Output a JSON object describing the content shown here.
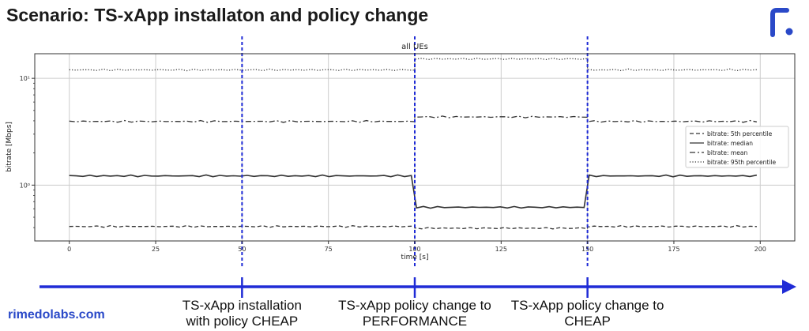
{
  "slide": {
    "title": "Scenario: TS-xApp installaton and policy change",
    "brand": "rimedolabs.com",
    "logo_icon": "rimedo-logo-icon",
    "accent_color": "#1f2bd6",
    "brand_color": "#2a49c8"
  },
  "annotations": [
    {
      "x": 50,
      "line1": "TS-xApp installation",
      "line2": "with policy CHEAP"
    },
    {
      "x": 100,
      "line1": "TS-xApp policy change to",
      "line2": "PERFORMANCE"
    },
    {
      "x": 150,
      "line1": "TS-xApp policy change to",
      "line2": "CHEAP"
    }
  ],
  "chart_data": {
    "type": "line",
    "title": "all UEs",
    "xlabel": "time [s]",
    "ylabel": "bitrate [Mbps]",
    "xlim": [
      -10,
      210
    ],
    "ylim": [
      0.3,
      17
    ],
    "yscale": "log",
    "xticks": [
      0,
      25,
      50,
      75,
      100,
      125,
      150,
      175,
      200
    ],
    "yticks": [
      {
        "value": 1,
        "label": "10⁰"
      },
      {
        "value": 10,
        "label": "10¹"
      }
    ],
    "grid": true,
    "legend_position": "center-right",
    "event_lines_x": [
      50,
      100,
      150
    ],
    "series": [
      {
        "name": "bitrate: 5th percentile",
        "style": "dashed",
        "segments": [
          {
            "x_start": 0,
            "x_end": 100,
            "y": 0.41
          },
          {
            "x_start": 100,
            "x_end": 150,
            "y": 0.395
          },
          {
            "x_start": 150,
            "x_end": 199,
            "y": 0.41
          }
        ]
      },
      {
        "name": "bitrate: median",
        "style": "solid",
        "segments": [
          {
            "x_start": 0,
            "x_end": 99,
            "y": 1.22
          },
          {
            "x_start": 100.5,
            "x_end": 149,
            "y": 0.62
          },
          {
            "x_start": 150.5,
            "x_end": 199,
            "y": 1.22
          }
        ]
      },
      {
        "name": "bitrate: mean",
        "style": "dashdot",
        "segments": [
          {
            "x_start": 0,
            "x_end": 100,
            "y": 3.95
          },
          {
            "x_start": 100,
            "x_end": 150,
            "y": 4.35
          },
          {
            "x_start": 150,
            "x_end": 199,
            "y": 3.95
          }
        ]
      },
      {
        "name": "bitrate: 95th percentile",
        "style": "dotted",
        "segments": [
          {
            "x_start": 0,
            "x_end": 100,
            "y": 12.0
          },
          {
            "x_start": 100,
            "x_end": 150,
            "y": 15.2
          },
          {
            "x_start": 150,
            "x_end": 199,
            "y": 12.0
          }
        ]
      }
    ]
  }
}
